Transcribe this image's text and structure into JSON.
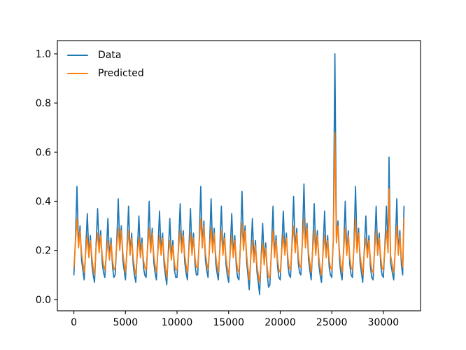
{
  "figure": {
    "background": "#ffffff"
  },
  "chart_data": {
    "type": "line",
    "title": "",
    "xlabel": "",
    "ylabel": "",
    "grid": false,
    "legend": {
      "position": "upper-left",
      "frame": false
    },
    "xlim": [
      -1600,
      33600
    ],
    "ylim": [
      -0.046,
      1.054
    ],
    "xticks": {
      "values": [
        0,
        5000,
        10000,
        15000,
        20000,
        25000,
        30000
      ],
      "labels": [
        "0",
        "5000",
        "10000",
        "15000",
        "20000",
        "25000",
        "30000"
      ]
    },
    "yticks": {
      "values": [
        0.0,
        0.2,
        0.4,
        0.6,
        0.8,
        1.0
      ],
      "labels": [
        "0.0",
        "0.2",
        "0.4",
        "0.6",
        "0.8",
        "1.0"
      ]
    },
    "axis_color": "#000000",
    "x": [
      0,
      150,
      300,
      450,
      600,
      750,
      870,
      1000,
      1150,
      1300,
      1450,
      1600,
      1750,
      1870,
      2000,
      2150,
      2300,
      2450,
      2600,
      2750,
      2870,
      3000,
      3150,
      3300,
      3450,
      3600,
      3750,
      3870,
      4000,
      4150,
      4300,
      4450,
      4600,
      4750,
      4870,
      5000,
      5150,
      5300,
      5450,
      5600,
      5750,
      5870,
      6000,
      6150,
      6300,
      6450,
      6600,
      6750,
      6870,
      7000,
      7150,
      7300,
      7450,
      7600,
      7750,
      7870,
      8000,
      8150,
      8300,
      8450,
      8600,
      8750,
      8870,
      9000,
      9150,
      9300,
      9450,
      9600,
      9750,
      9870,
      10000,
      10150,
      10300,
      10450,
      10600,
      10750,
      10870,
      11000,
      11150,
      11300,
      11450,
      11600,
      11750,
      11870,
      12000,
      12150,
      12300,
      12450,
      12600,
      12750,
      12870,
      13000,
      13150,
      13300,
      13450,
      13600,
      13750,
      13870,
      14000,
      14150,
      14300,
      14450,
      14600,
      14750,
      14870,
      15000,
      15150,
      15300,
      15450,
      15600,
      15750,
      15870,
      16000,
      16150,
      16300,
      16450,
      16600,
      16750,
      16870,
      17000,
      17150,
      17300,
      17450,
      17600,
      17750,
      17870,
      18000,
      18150,
      18300,
      18450,
      18600,
      18750,
      18870,
      19000,
      19150,
      19300,
      19450,
      19600,
      19750,
      19870,
      20000,
      20150,
      20300,
      20450,
      20600,
      20750,
      20870,
      21000,
      21150,
      21300,
      21450,
      21600,
      21750,
      21870,
      22000,
      22150,
      22300,
      22450,
      22600,
      22750,
      22870,
      23000,
      23150,
      23300,
      23450,
      23600,
      23750,
      23870,
      24000,
      24150,
      24300,
      24450,
      24600,
      24750,
      24870,
      25000,
      25150,
      25300,
      25450,
      25600,
      25750,
      25870,
      26000,
      26150,
      26300,
      26450,
      26600,
      26750,
      26870,
      27000,
      27150,
      27300,
      27450,
      27600,
      27750,
      27870,
      28000,
      28150,
      28300,
      28450,
      28600,
      28750,
      28870,
      29000,
      29150,
      29300,
      29450,
      29600,
      29750,
      29870,
      30000,
      30150,
      30300,
      30450,
      30550,
      30700,
      30870,
      31000,
      31150,
      31300,
      31450,
      31600,
      31750,
      31870,
      32000
    ],
    "series": [
      {
        "name": "Data",
        "color": "#1f77b4",
        "values": [
          0.1,
          0.24,
          0.46,
          0.22,
          0.3,
          0.16,
          0.12,
          0.08,
          0.2,
          0.35,
          0.18,
          0.26,
          0.14,
          0.1,
          0.07,
          0.22,
          0.37,
          0.2,
          0.28,
          0.15,
          0.11,
          0.09,
          0.19,
          0.33,
          0.17,
          0.25,
          0.13,
          0.09,
          0.1,
          0.23,
          0.41,
          0.21,
          0.3,
          0.16,
          0.12,
          0.08,
          0.21,
          0.38,
          0.19,
          0.27,
          0.14,
          0.1,
          0.07,
          0.2,
          0.34,
          0.18,
          0.25,
          0.13,
          0.1,
          0.09,
          0.22,
          0.4,
          0.2,
          0.29,
          0.15,
          0.11,
          0.08,
          0.21,
          0.36,
          0.19,
          0.27,
          0.14,
          0.1,
          0.06,
          0.19,
          0.33,
          0.17,
          0.24,
          0.12,
          0.09,
          0.09,
          0.22,
          0.39,
          0.2,
          0.28,
          0.15,
          0.11,
          0.08,
          0.21,
          0.37,
          0.19,
          0.27,
          0.14,
          0.1,
          0.1,
          0.24,
          0.46,
          0.22,
          0.32,
          0.16,
          0.12,
          0.09,
          0.22,
          0.41,
          0.2,
          0.29,
          0.15,
          0.11,
          0.08,
          0.21,
          0.38,
          0.19,
          0.27,
          0.14,
          0.1,
          0.07,
          0.2,
          0.35,
          0.18,
          0.26,
          0.13,
          0.09,
          0.08,
          0.23,
          0.44,
          0.21,
          0.3,
          0.15,
          0.1,
          0.04,
          0.18,
          0.33,
          0.16,
          0.24,
          0.11,
          0.07,
          0.02,
          0.17,
          0.31,
          0.15,
          0.23,
          0.1,
          0.05,
          0.06,
          0.2,
          0.38,
          0.18,
          0.26,
          0.13,
          0.09,
          0.08,
          0.21,
          0.36,
          0.19,
          0.27,
          0.14,
          0.1,
          0.09,
          0.23,
          0.42,
          0.2,
          0.29,
          0.15,
          0.11,
          0.1,
          0.24,
          0.47,
          0.22,
          0.31,
          0.16,
          0.12,
          0.08,
          0.21,
          0.39,
          0.19,
          0.28,
          0.14,
          0.1,
          0.07,
          0.2,
          0.36,
          0.18,
          0.26,
          0.13,
          0.1,
          0.09,
          0.25,
          1.0,
          0.24,
          0.32,
          0.16,
          0.11,
          0.08,
          0.21,
          0.4,
          0.19,
          0.28,
          0.14,
          0.1,
          0.09,
          0.22,
          0.46,
          0.2,
          0.29,
          0.15,
          0.11,
          0.07,
          0.2,
          0.34,
          0.18,
          0.26,
          0.13,
          0.09,
          0.08,
          0.21,
          0.38,
          0.19,
          0.27,
          0.14,
          0.1,
          0.09,
          0.22,
          0.38,
          0.2,
          0.58,
          0.15,
          0.11,
          0.08,
          0.21,
          0.41,
          0.19,
          0.28,
          0.14,
          0.1,
          0.38
        ]
      },
      {
        "name": "Predicted",
        "color": "#ff7f0e",
        "values": [
          0.13,
          0.23,
          0.33,
          0.21,
          0.28,
          0.19,
          0.15,
          0.11,
          0.19,
          0.26,
          0.17,
          0.24,
          0.17,
          0.13,
          0.1,
          0.21,
          0.27,
          0.19,
          0.26,
          0.18,
          0.14,
          0.12,
          0.18,
          0.24,
          0.16,
          0.23,
          0.16,
          0.12,
          0.13,
          0.22,
          0.29,
          0.2,
          0.28,
          0.19,
          0.15,
          0.11,
          0.2,
          0.28,
          0.18,
          0.25,
          0.17,
          0.13,
          0.1,
          0.19,
          0.25,
          0.17,
          0.23,
          0.16,
          0.13,
          0.12,
          0.21,
          0.29,
          0.19,
          0.27,
          0.18,
          0.14,
          0.11,
          0.2,
          0.26,
          0.18,
          0.25,
          0.17,
          0.13,
          0.09,
          0.18,
          0.24,
          0.16,
          0.22,
          0.15,
          0.12,
          0.12,
          0.21,
          0.28,
          0.19,
          0.26,
          0.18,
          0.14,
          0.11,
          0.2,
          0.27,
          0.18,
          0.25,
          0.17,
          0.13,
          0.13,
          0.23,
          0.33,
          0.21,
          0.3,
          0.19,
          0.15,
          0.12,
          0.21,
          0.29,
          0.19,
          0.27,
          0.18,
          0.14,
          0.11,
          0.2,
          0.28,
          0.18,
          0.25,
          0.17,
          0.13,
          0.1,
          0.19,
          0.26,
          0.17,
          0.24,
          0.16,
          0.12,
          0.11,
          0.22,
          0.31,
          0.2,
          0.28,
          0.18,
          0.13,
          0.08,
          0.17,
          0.24,
          0.15,
          0.22,
          0.14,
          0.1,
          0.07,
          0.16,
          0.23,
          0.14,
          0.21,
          0.13,
          0.09,
          0.09,
          0.19,
          0.28,
          0.17,
          0.24,
          0.16,
          0.12,
          0.11,
          0.2,
          0.26,
          0.18,
          0.25,
          0.17,
          0.13,
          0.12,
          0.22,
          0.3,
          0.19,
          0.27,
          0.18,
          0.14,
          0.13,
          0.23,
          0.33,
          0.21,
          0.29,
          0.19,
          0.15,
          0.11,
          0.2,
          0.28,
          0.18,
          0.26,
          0.17,
          0.13,
          0.1,
          0.19,
          0.26,
          0.17,
          0.24,
          0.16,
          0.13,
          0.12,
          0.24,
          0.68,
          0.23,
          0.3,
          0.19,
          0.14,
          0.11,
          0.2,
          0.29,
          0.18,
          0.26,
          0.17,
          0.13,
          0.12,
          0.21,
          0.33,
          0.19,
          0.27,
          0.18,
          0.14,
          0.1,
          0.19,
          0.25,
          0.17,
          0.24,
          0.16,
          0.12,
          0.11,
          0.2,
          0.28,
          0.18,
          0.25,
          0.17,
          0.13,
          0.12,
          0.21,
          0.28,
          0.19,
          0.45,
          0.18,
          0.14,
          0.11,
          0.2,
          0.3,
          0.18,
          0.26,
          0.17,
          0.13,
          0.33
        ]
      }
    ]
  }
}
